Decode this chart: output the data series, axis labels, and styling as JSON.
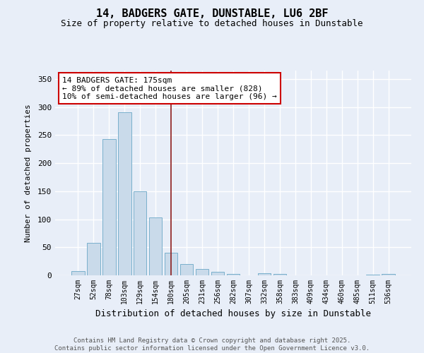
{
  "title1": "14, BADGERS GATE, DUNSTABLE, LU6 2BF",
  "title2": "Size of property relative to detached houses in Dunstable",
  "xlabel": "Distribution of detached houses by size in Dunstable",
  "ylabel": "Number of detached properties",
  "categories": [
    "27sqm",
    "52sqm",
    "78sqm",
    "103sqm",
    "129sqm",
    "154sqm",
    "180sqm",
    "205sqm",
    "231sqm",
    "256sqm",
    "282sqm",
    "307sqm",
    "332sqm",
    "358sqm",
    "383sqm",
    "409sqm",
    "434sqm",
    "460sqm",
    "485sqm",
    "511sqm",
    "536sqm"
  ],
  "values": [
    8,
    58,
    243,
    291,
    150,
    103,
    40,
    20,
    11,
    6,
    3,
    0,
    4,
    2,
    0,
    0,
    0,
    0,
    0,
    1,
    2
  ],
  "bar_color": "#c9daea",
  "bar_edge_color": "#7ab0cc",
  "vline_x": 6,
  "vline_color": "#8b1a1a",
  "annotation_text": "14 BADGERS GATE: 175sqm\n← 89% of detached houses are smaller (828)\n10% of semi-detached houses are larger (96) →",
  "annotation_box_color": "white",
  "annotation_box_edge_color": "#cc0000",
  "ylim": [
    0,
    365
  ],
  "yticks": [
    0,
    50,
    100,
    150,
    200,
    250,
    300,
    350
  ],
  "footnote": "Contains HM Land Registry data © Crown copyright and database right 2025.\nContains public sector information licensed under the Open Government Licence v3.0.",
  "background_color": "#e8eef8",
  "grid_color": "white",
  "title_fontsize": 11,
  "subtitle_fontsize": 9
}
